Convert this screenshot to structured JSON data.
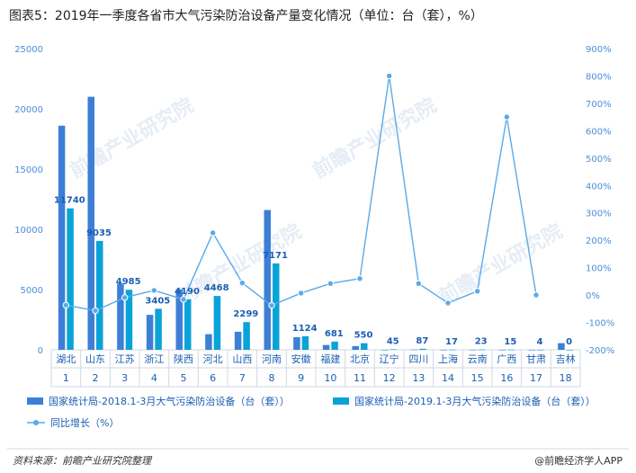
{
  "chart_data": {
    "type": "bar",
    "title": "图表5：2019年一季度各省市大气污染防治设备产量变化情况（单位：台（套），%）",
    "categories": [
      {
        "name": "湖北",
        "index": "1"
      },
      {
        "name": "山东",
        "index": "2"
      },
      {
        "name": "江苏",
        "index": "3"
      },
      {
        "name": "浙江",
        "index": "4"
      },
      {
        "name": "陕西",
        "index": "5"
      },
      {
        "name": "河北",
        "index": "6"
      },
      {
        "name": "山西",
        "index": "7"
      },
      {
        "name": "河南",
        "index": "8"
      },
      {
        "name": "安徽",
        "index": "9"
      },
      {
        "name": "福建",
        "index": "10"
      },
      {
        "name": "北京",
        "index": "11"
      },
      {
        "name": "辽宁",
        "index": "12"
      },
      {
        "name": "四川",
        "index": "13"
      },
      {
        "name": "上海",
        "index": "14"
      },
      {
        "name": "云南",
        "index": "15"
      },
      {
        "name": "广西",
        "index": "16"
      },
      {
        "name": "甘肃",
        "index": "17"
      },
      {
        "name": "吉林",
        "index": "18"
      }
    ],
    "series": [
      {
        "name": "国家统计局-2018.1-3月大气污染防治设备（台（套））",
        "type": "bar",
        "color": "#3d7fd6",
        "values": [
          18600,
          21000,
          5500,
          2900,
          5000,
          1300,
          1500,
          11600,
          1050,
          400,
          310,
          4,
          20,
          6,
          8,
          3,
          2,
          550
        ]
      },
      {
        "name": "国家统计局-2019.1-3月大气污染防治设备（台（套））",
        "type": "bar",
        "color": "#0aa3d8",
        "values": [
          11740,
          9035,
          4985,
          3405,
          4190,
          4468,
          2299,
          7171,
          1124,
          681,
          550,
          45,
          87,
          17,
          23,
          15,
          4,
          0
        ],
        "labels": [
          "11740",
          "9035",
          "4985",
          "3405",
          "4190",
          "4468",
          "2299",
          "7171",
          "1124",
          "681",
          "550",
          "45",
          "87",
          "17",
          "23",
          "15",
          "4",
          "0"
        ]
      },
      {
        "name": "同比增长（%）",
        "type": "line",
        "axis": "right",
        "color": "#5aaae8",
        "values": [
          -37,
          -57,
          -9,
          17,
          -16,
          227,
          44,
          -38,
          7,
          42,
          60,
          800,
          42,
          -29,
          14,
          650,
          0,
          null
        ]
      }
    ],
    "ylim": [
      0,
      25000
    ],
    "yticks": [
      "0",
      "5000",
      "10000",
      "15000",
      "20000",
      "25000"
    ],
    "y2lim": [
      -200,
      900
    ],
    "y2ticks": [
      "-200%",
      "-100%",
      "0%",
      "100%",
      "200%",
      "300%",
      "400%",
      "500%",
      "600%",
      "700%",
      "800%",
      "900%"
    ],
    "legend_position": "bottom",
    "grid": false,
    "source": "资料来源：前瞻产业研究院整理",
    "brand": "@前瞻经济学人APP",
    "watermark": "前瞻产业研究院"
  }
}
